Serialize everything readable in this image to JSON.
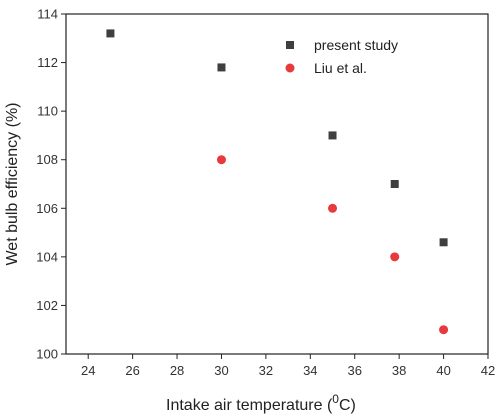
{
  "chart_data": {
    "type": "scatter",
    "xlabel": "Intake air temperature (",
    "xlabel_sup": "0",
    "xlabel_unit": "C)",
    "ylabel": "Wet bulb efficiency (%)",
    "xlim": [
      23,
      42
    ],
    "ylim": [
      100,
      114
    ],
    "xticks": [
      24,
      26,
      28,
      30,
      32,
      34,
      36,
      38,
      40,
      42
    ],
    "yticks": [
      100,
      102,
      104,
      106,
      108,
      110,
      112,
      114
    ],
    "grid": false,
    "legend_position": "top-right",
    "series": [
      {
        "name": "present study",
        "marker": "square",
        "color": "#3f3f3f",
        "x": [
          25,
          30,
          35,
          37.8,
          40
        ],
        "y": [
          113.2,
          111.8,
          109.0,
          107.0,
          104.6
        ]
      },
      {
        "name": "Liu et al.",
        "marker": "circle",
        "color": "#e8393c",
        "x": [
          30,
          35,
          37.8,
          40
        ],
        "y": [
          108.0,
          106.0,
          104.0,
          101.0
        ]
      }
    ]
  }
}
